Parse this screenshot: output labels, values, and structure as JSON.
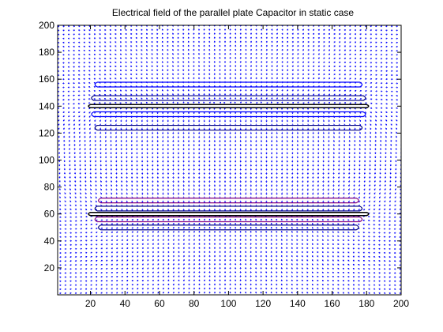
{
  "chart_data": {
    "type": "quiver",
    "title": "Electrical field of the parallel plate Capacitor in static case",
    "xlabel": "",
    "ylabel": "",
    "xlim": [
      1,
      200
    ],
    "ylim": [
      0,
      200
    ],
    "xticks": [
      20,
      40,
      60,
      80,
      100,
      120,
      140,
      160,
      180,
      200
    ],
    "yticks": [
      20,
      40,
      60,
      80,
      100,
      120,
      140,
      160,
      180,
      200
    ],
    "grid": false,
    "arrow_color": "#0000ff",
    "plates": [
      {
        "x": [
          20,
          180
        ],
        "y": 140,
        "potential": "+"
      },
      {
        "x": [
          20,
          180
        ],
        "y": 60,
        "potential": "-"
      }
    ],
    "equipotential_contours": [
      {
        "level_y": 156,
        "x": [
          24,
          176
        ],
        "color": "#0000ff"
      },
      {
        "level_y": 146,
        "x": [
          22,
          178
        ],
        "color": "#000080"
      },
      {
        "level_y": 134,
        "x": [
          22,
          178
        ],
        "color": "#0000ff"
      },
      {
        "level_y": 124,
        "x": [
          24,
          176
        ],
        "color": "#000080"
      },
      {
        "level_y": 70,
        "x": [
          26,
          174
        ],
        "color": "#800080"
      },
      {
        "level_y": 64,
        "x": [
          24,
          176
        ],
        "color": "#000080"
      },
      {
        "level_y": 56,
        "x": [
          24,
          176
        ],
        "color": "#800080"
      },
      {
        "level_y": 50,
        "x": [
          26,
          174
        ],
        "color": "#000080"
      }
    ],
    "field_sample_spacing": [
      3,
      3
    ]
  }
}
